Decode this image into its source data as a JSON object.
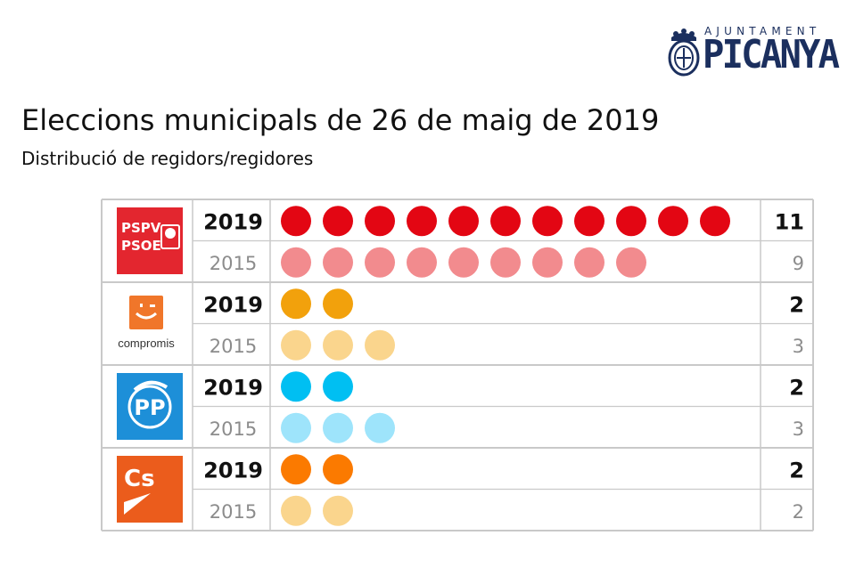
{
  "header": {
    "logo_top": "AJUNTAMENT",
    "logo_main": "PICANYA",
    "title": "Eleccions municipals de 26 de maig de 2019",
    "subtitle": "Distribució de regidors/regidores"
  },
  "chart_data": {
    "type": "table",
    "title": "Eleccions municipals de 26 de maig de 2019",
    "subtitle": "Distribució de regidors/regidores",
    "years": [
      "2019",
      "2015"
    ],
    "series": [
      {
        "party": "PSPV-PSOE",
        "logo_lines": [
          "PSPV",
          "PSOE"
        ],
        "color_2019": "#e30613",
        "color_2015": "#f28b8e",
        "logo_bg": "#e3262f",
        "values": [
          11,
          9
        ]
      },
      {
        "party": "Compromís",
        "logo_text": "compromis",
        "color_2019": "#f2a10c",
        "color_2015": "#fad58d",
        "logo_bg": "#f0762a",
        "values": [
          2,
          3
        ]
      },
      {
        "party": "PP",
        "logo_text": "PP",
        "color_2019": "#00bff2",
        "color_2015": "#9ee4fb",
        "logo_bg": "#1d8fd8",
        "values": [
          2,
          3
        ]
      },
      {
        "party": "Ciudadanos",
        "logo_text": "Cs",
        "color_2019": "#fb7a00",
        "color_2015": "#fad58d",
        "logo_bg": "#eb5c1c",
        "values": [
          2,
          2
        ]
      }
    ]
  }
}
